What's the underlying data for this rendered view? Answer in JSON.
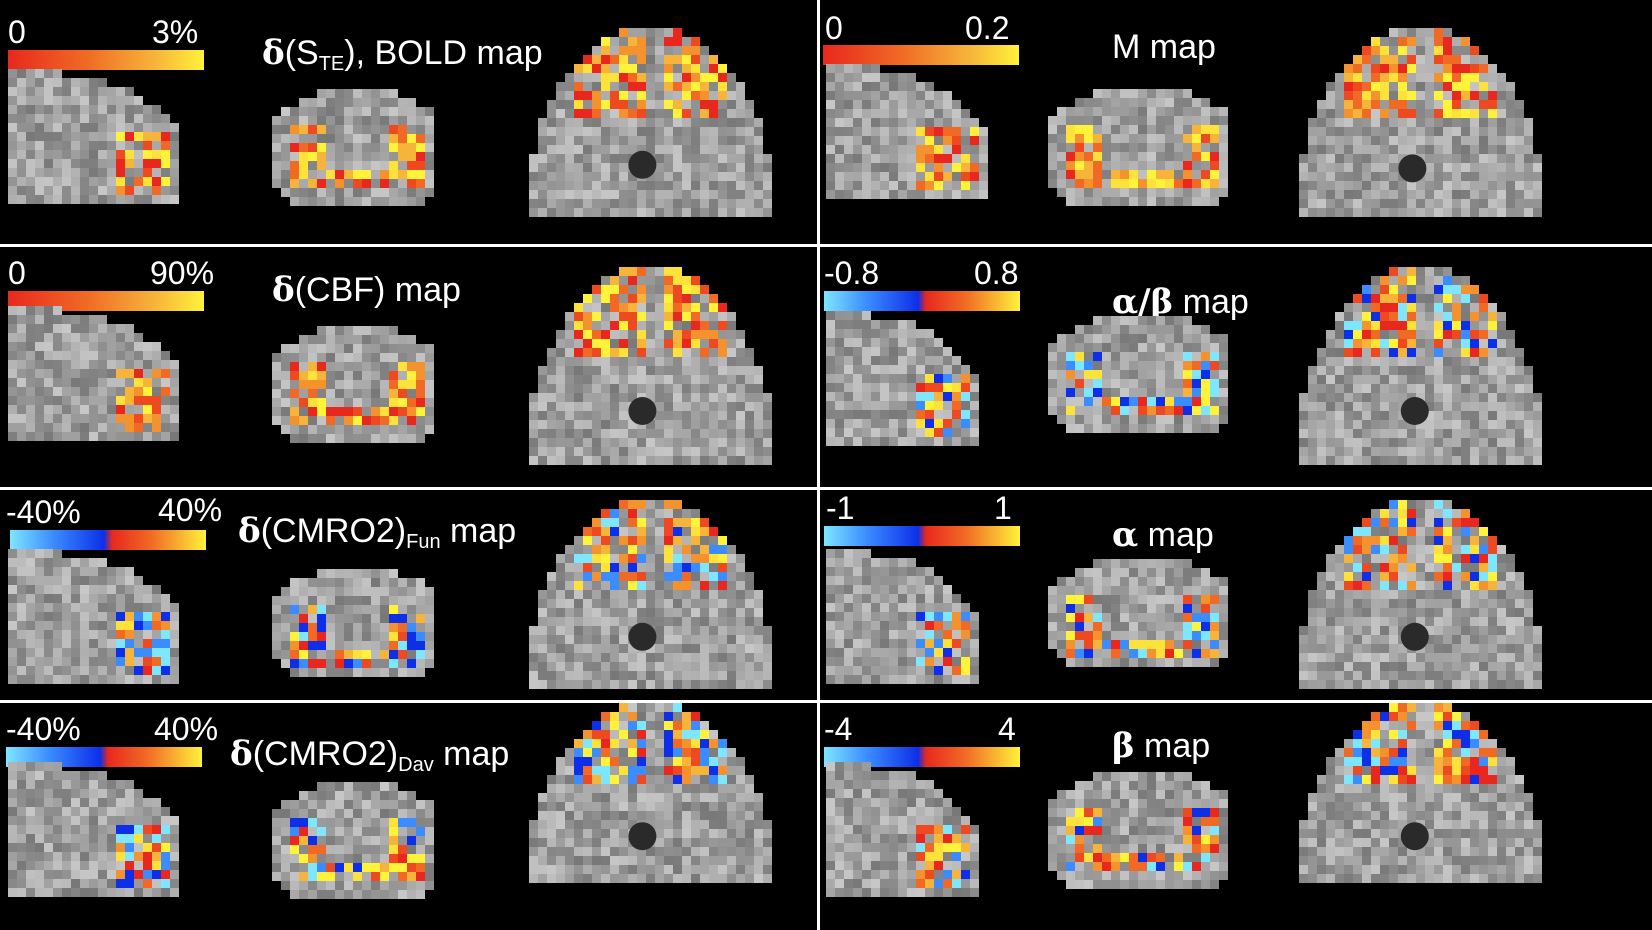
{
  "panels": [
    {
      "id": "r1l",
      "title_sym": "δ",
      "title_text": "(S",
      "title_sub": "TE",
      "title_rest": "), BOLD map",
      "cmin": "0",
      "cmax": "3%",
      "cmap": "warm"
    },
    {
      "id": "r1r",
      "title_sym": "",
      "title_text": "M map",
      "title_sub": "",
      "title_rest": "",
      "cmin": "0",
      "cmax": "0.2",
      "cmap": "warm"
    },
    {
      "id": "r2l",
      "title_sym": "δ",
      "title_text": "(CBF) map",
      "title_sub": "",
      "title_rest": "",
      "cmin": "0",
      "cmax": "90%",
      "cmap": "warm"
    },
    {
      "id": "r2r",
      "title_sym": "α/β",
      "title_text": " map",
      "title_sub": "",
      "title_rest": "",
      "cmin": "-0.8",
      "cmax": "0.8",
      "cmap": "div"
    },
    {
      "id": "r3l",
      "title_sym": "δ",
      "title_text": "(CMRO2)",
      "title_sub": "Fun",
      "title_rest": " map",
      "cmin": "-40%",
      "cmax": "40%",
      "cmap": "div"
    },
    {
      "id": "r3r",
      "title_sym": "α",
      "title_text": " map",
      "title_sub": "",
      "title_rest": "",
      "cmin": "-1",
      "cmax": "1",
      "cmap": "div"
    },
    {
      "id": "r4l",
      "title_sym": "δ",
      "title_text": "(CMRO2)",
      "title_sub": "Dav",
      "title_rest": " map",
      "cmin": "-40%",
      "cmax": "40%",
      "cmap": "div"
    },
    {
      "id": "r4r",
      "title_sym": "β",
      "title_text": " map",
      "title_sub": "",
      "title_rest": "",
      "cmin": "-4",
      "cmax": "4",
      "cmap": "div"
    }
  ],
  "colors": {
    "background": "#000000",
    "divider": "#ffffff",
    "hot_low": "#e8281e",
    "hot_high": "#fff23a",
    "cold_low": "#7ee6ff",
    "cold_high": "#0d2fe8"
  },
  "slice_names": [
    "sagittal-slice",
    "coronal-slice",
    "axial-slice"
  ]
}
